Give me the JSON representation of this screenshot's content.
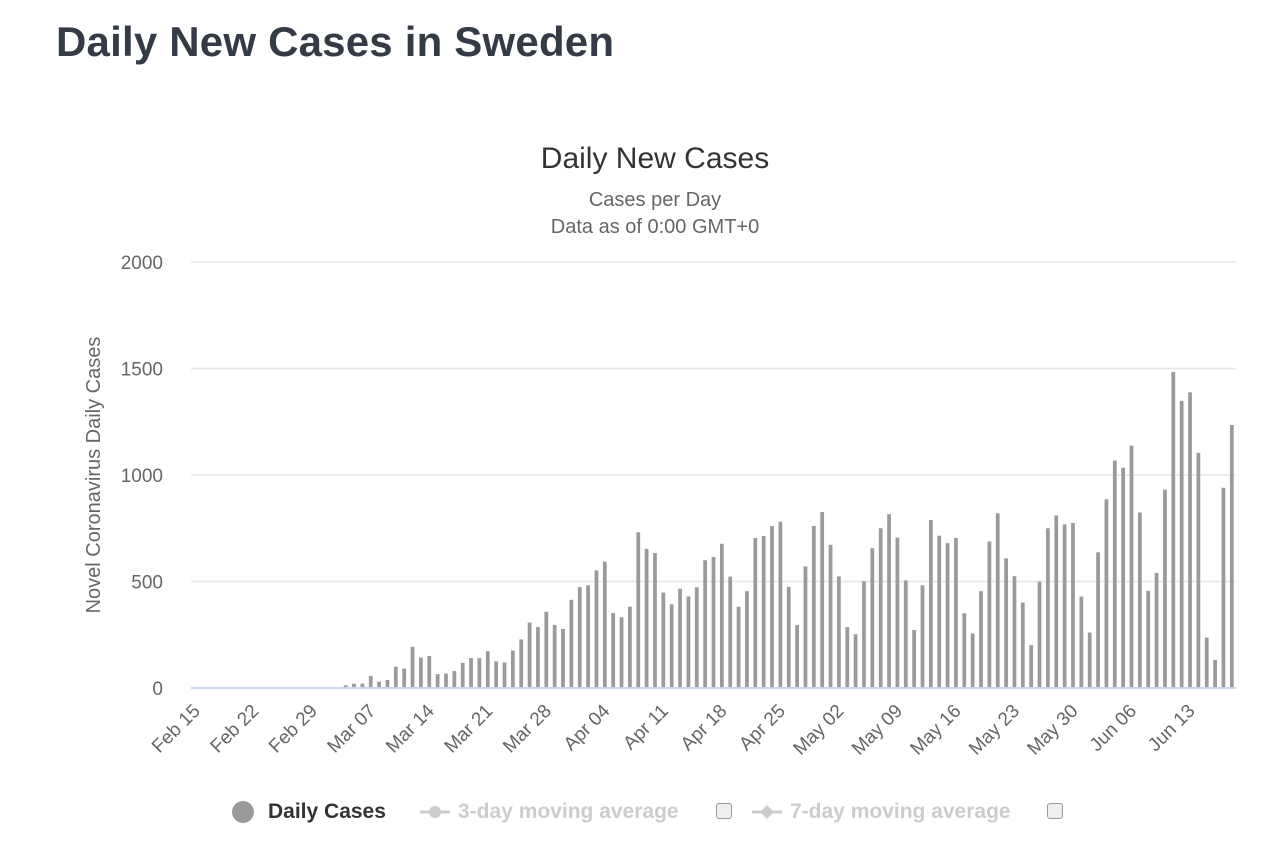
{
  "page": {
    "title": "Daily New Cases in Sweden"
  },
  "chart_data": {
    "type": "bar",
    "title": "Daily New Cases",
    "subtitle": [
      "Cases per Day",
      "Data as of 0:00 GMT+0"
    ],
    "ylabel": "Novel Coronavirus Daily Cases",
    "xlabel": "",
    "ylim": [
      0,
      2000
    ],
    "yticks": [
      0,
      500,
      1000,
      1500,
      2000
    ],
    "xtick_labels": [
      "Feb 15",
      "Feb 22",
      "Feb 29",
      "Mar 07",
      "Mar 14",
      "Mar 21",
      "Mar 28",
      "Apr 04",
      "Apr 11",
      "Apr 18",
      "Apr 25",
      "May 02",
      "May 09",
      "May 16",
      "May 23",
      "May 30",
      "Jun 06",
      "Jun 13"
    ],
    "grid": true,
    "bar_color": "#9a9a9a",
    "series": [
      {
        "name": "Daily Cases",
        "start_date": "Feb 15",
        "values": [
          0,
          0,
          0,
          0,
          0,
          0,
          0,
          0,
          0,
          0,
          0,
          0,
          0,
          0,
          0,
          0,
          0,
          0,
          13,
          20,
          21,
          56,
          30,
          38,
          100,
          91,
          193,
          143,
          150,
          65,
          68,
          80,
          118,
          141,
          140,
          173,
          125,
          120,
          176,
          228,
          307,
          286,
          358,
          296,
          277,
          414,
          474,
          482,
          552,
          593,
          352,
          332,
          382,
          731,
          653,
          634,
          448,
          393,
          466,
          430,
          473,
          600,
          615,
          677,
          523,
          382,
          455,
          704,
          714,
          760,
          781,
          475,
          296,
          571,
          761,
          826,
          672,
          524,
          286,
          252,
          501,
          656,
          750,
          816,
          706,
          505,
          272,
          482,
          789,
          715,
          680,
          705,
          351,
          256,
          455,
          688,
          820,
          609,
          525,
          401,
          201,
          499,
          750,
          810,
          768,
          775,
          429,
          260,
          637,
          886,
          1068,
          1034,
          1138,
          824,
          456,
          540,
          931,
          1483,
          1348,
          1388,
          1104,
          237,
          132,
          940,
          1235
        ]
      }
    ],
    "legend": [
      {
        "name": "Daily Cases",
        "active": true
      },
      {
        "name": "3-day moving average",
        "active": false
      },
      {
        "name": "7-day moving average",
        "active": false
      }
    ],
    "legend_position": "bottom",
    "colors": {
      "bars": "#9a9a9a",
      "grid": "#e6e6e6",
      "axis": "#ccd6eb",
      "inactive_legend": "#cccccc"
    }
  }
}
